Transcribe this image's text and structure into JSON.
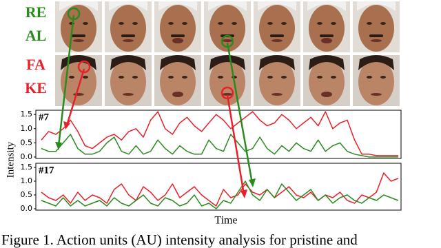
{
  "labels": {
    "real": [
      "RE",
      "AL"
    ],
    "fake": [
      "FA",
      "KE"
    ]
  },
  "y_label": "Intensity",
  "x_label": "Time",
  "caption": "Figure 1. Action units (AU) intensity analysis for pristine and",
  "chart_data": [
    {
      "type": "line",
      "title": "#7",
      "ylim": [
        -0.05,
        1.65
      ],
      "yticks": [
        {
          "value": 0,
          "label": "0.0"
        },
        {
          "value": 0.5,
          "label": "0.5"
        },
        {
          "value": 1,
          "label": "1.0"
        },
        {
          "value": 1.5,
          "label": "1.5"
        }
      ],
      "series": [
        {
          "color": "#e8202a",
          "values": [
            0.6,
            0.9,
            0.8,
            1.0,
            1.3,
            0.9,
            0.4,
            0.3,
            0.5,
            0.7,
            0.8,
            0.6,
            0.9,
            1.0,
            0.7,
            1.3,
            1.6,
            1.0,
            0.8,
            1.2,
            1.4,
            1.1,
            0.9,
            1.2,
            1.5,
            1.3,
            1.0,
            1.2,
            1.4,
            1.6,
            1.3,
            1.1,
            1.2,
            1.5,
            1.3,
            1.0,
            1.2,
            1.4,
            1.1,
            1.6,
            1.0,
            1.2,
            1.3,
            0.6,
            0.1,
            0.1,
            0.05,
            0.05,
            0.05,
            0.05
          ]
        },
        {
          "color": "#2a8a1e",
          "values": [
            0.3,
            0.2,
            0.2,
            0.5,
            0.8,
            0.3,
            0.1,
            0.1,
            0.2,
            0.5,
            0.7,
            0.2,
            0.1,
            0.4,
            0.1,
            0.2,
            0.6,
            0.3,
            0.1,
            0.4,
            0.2,
            0.1,
            0.1,
            0.6,
            0.3,
            0.2,
            0.8,
            0.5,
            0.2,
            0.3,
            0.7,
            0.3,
            0.1,
            0.4,
            0.2,
            0.5,
            0.3,
            0.2,
            0.6,
            0.2,
            0.4,
            0.5,
            0.2,
            0.1,
            0.05,
            0,
            0,
            0,
            0,
            0
          ]
        }
      ]
    },
    {
      "type": "line",
      "title": "#17",
      "ylim": [
        -0.05,
        1.65
      ],
      "yticks": [
        {
          "value": 0,
          "label": "0.0"
        },
        {
          "value": 0.5,
          "label": "0.5"
        },
        {
          "value": 1,
          "label": "1.0"
        },
        {
          "value": 1.5,
          "label": "1.5"
        }
      ],
      "series": [
        {
          "color": "#e8202a",
          "values": [
            0.6,
            0.4,
            0.3,
            0.5,
            0.2,
            0.6,
            0.3,
            0.5,
            0.4,
            0.2,
            0.7,
            0.9,
            0.5,
            0.3,
            0.8,
            0.6,
            0.3,
            0.5,
            0.9,
            0.4,
            0.6,
            0.8,
            0.5,
            0.3,
            0.1,
            0.7,
            0.4,
            0.5,
            0.9,
            0.6,
            0.5,
            0.7,
            0.4,
            0.6,
            0.8,
            0.5,
            0.4,
            0.6,
            0.3,
            0.5,
            0.4,
            0.6,
            0.3,
            0.2,
            0.5,
            0.4,
            0.6,
            1.3,
            1.0,
            1.1
          ]
        },
        {
          "color": "#2a8a1e",
          "values": [
            0.3,
            0.2,
            0.1,
            0.4,
            0.1,
            0.3,
            0.1,
            0.2,
            0.3,
            0.1,
            0.4,
            0.2,
            0.1,
            0.3,
            0.5,
            0.2,
            0.1,
            0.4,
            0.3,
            0.1,
            0.2,
            0.5,
            0.1,
            0.2,
            0,
            0.3,
            0.2,
            0.6,
            1.0,
            0.5,
            0.3,
            0.7,
            0.4,
            0.9,
            0.6,
            0.3,
            0.5,
            0.7,
            0.3,
            0.5,
            0.2,
            0.4,
            0.5,
            0.3,
            0.2,
            0.4,
            0.3,
            0.5,
            0.4,
            0.3
          ]
        }
      ]
    }
  ]
}
